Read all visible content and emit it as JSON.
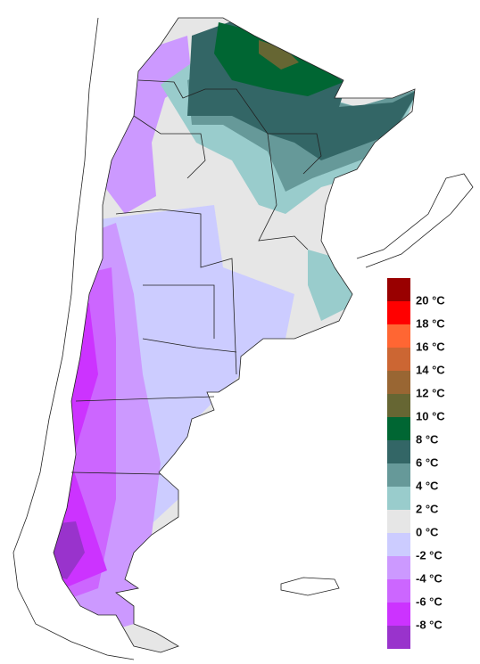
{
  "legend": {
    "labels": [
      "20 °C",
      "18 °C",
      "16 °C",
      "14 °C",
      "12 °C",
      "10 °C",
      "8 °C",
      "6 °C",
      "4 °C",
      "2 °C",
      "0 °C",
      "-2 °C",
      "-4 °C",
      "-6 °C",
      "-8 °C"
    ],
    "colors": [
      "#990000",
      "#ff0000",
      "#ff6633",
      "#cc6633",
      "#996633",
      "#666633",
      "#006633",
      "#336666",
      "#669999",
      "#99cccc",
      "#e6e6e6",
      "#ccccff",
      "#cc99ff",
      "#cc66ff",
      "#cc33ff",
      "#9933cc"
    ]
  }
}
